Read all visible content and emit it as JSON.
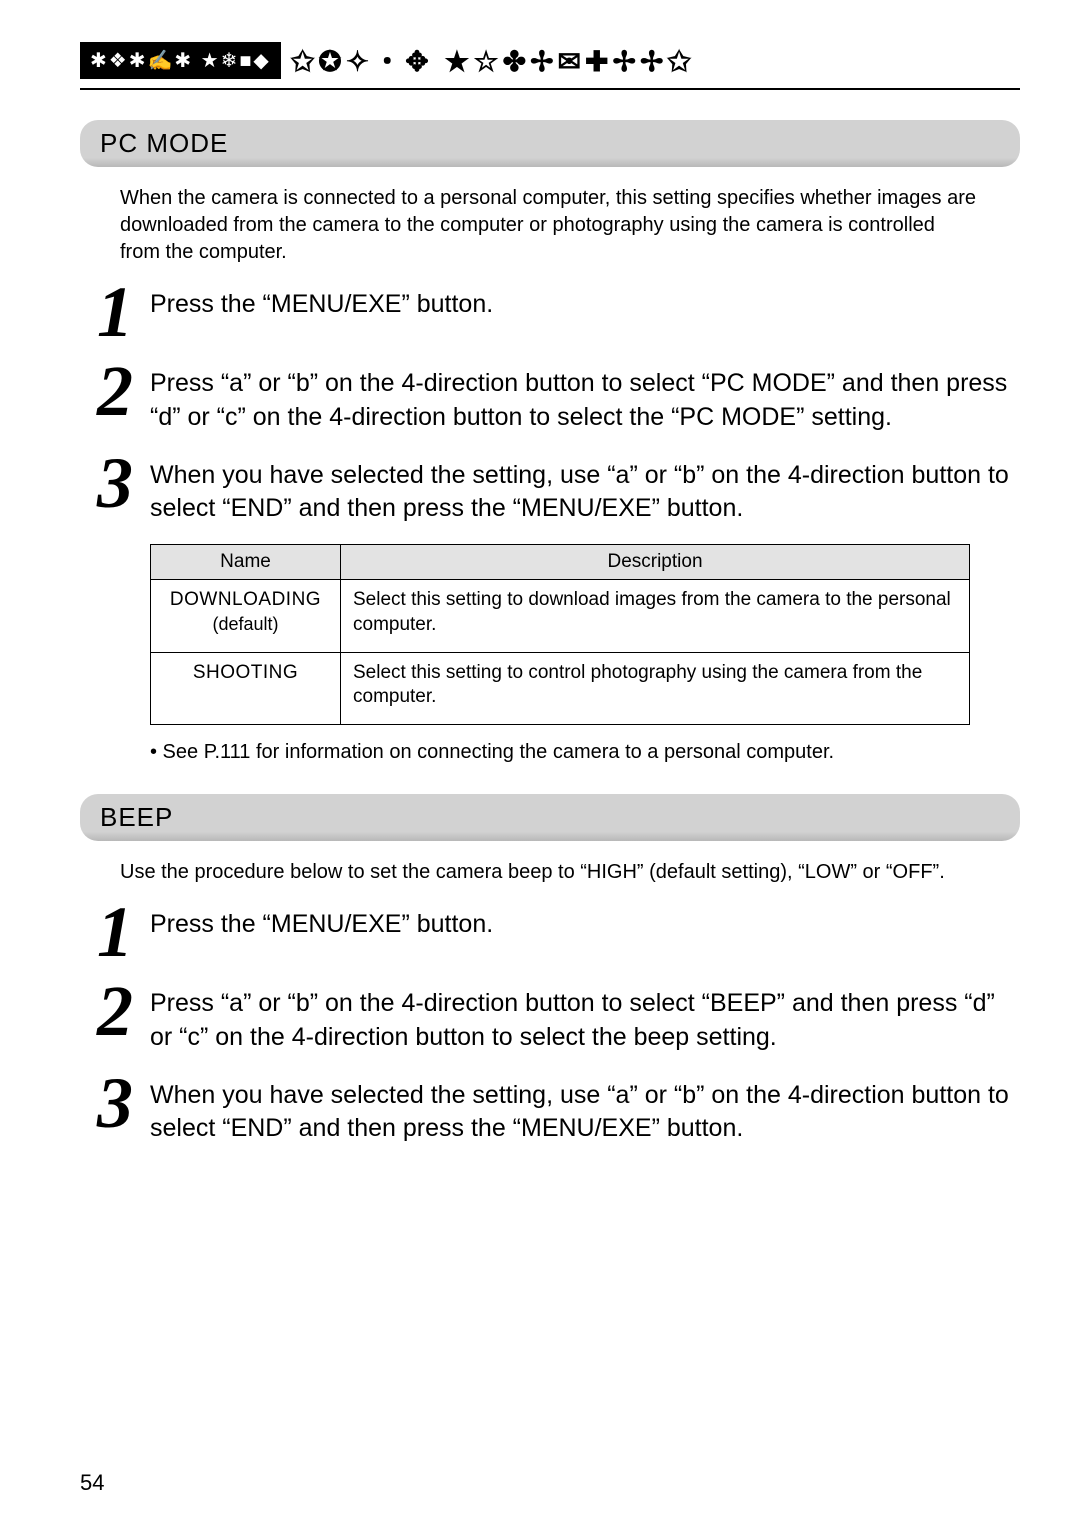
{
  "header": {
    "badge_symbols": "✱❖✱✍✱ ★❄■◆",
    "symbol_row": "✩✪✧・✥  ★☆✤✢✉✚✢✢✩"
  },
  "pc_mode": {
    "title": "PC MODE",
    "intro": "When the camera is connected to a personal computer, this setting specifies whether images are downloaded from the camera to the computer or photography using the camera is controlled from the computer.",
    "steps": [
      {
        "num": "1",
        "text": "Press the “MENU/EXE” button."
      },
      {
        "num": "2",
        "text": "Press “a” or “b” on the 4-direction button to select “PC MODE” and then press “d” or “c” on the 4-direction button to select the “PC MODE” setting."
      },
      {
        "num": "3",
        "text": "When you have selected the setting, use “a” or “b” on the 4-direction button to select “END” and then press the “MENU/EXE” button."
      }
    ],
    "table": {
      "col_name": "Name",
      "col_desc": "Description",
      "rows": [
        {
          "name_main": "DOWNLOADING",
          "name_sub": "(default)",
          "desc": "Select this setting to download images from the camera to the personal computer."
        },
        {
          "name_main": "SHOOTING",
          "name_sub": "",
          "desc": "Select this setting to control photography using the camera from the computer."
        }
      ]
    },
    "note": "• See P.111 for information on connecting the camera to a personal computer."
  },
  "beep": {
    "title": "BEEP",
    "intro": "Use the procedure below to set the camera beep to “HIGH” (default setting), “LOW” or “OFF”.",
    "steps": [
      {
        "num": "1",
        "text": "Press the “MENU/EXE” button."
      },
      {
        "num": "2",
        "text": "Press “a” or “b” on the 4-direction button to select “BEEP” and then press “d” or “c” on the 4-direction button to select the beep setting."
      },
      {
        "num": "3",
        "text": "When you have selected the setting, use “a” or “b” on the 4-direction button to select “END” and then press the “MENU/EXE” button."
      }
    ]
  },
  "page_number": "54"
}
